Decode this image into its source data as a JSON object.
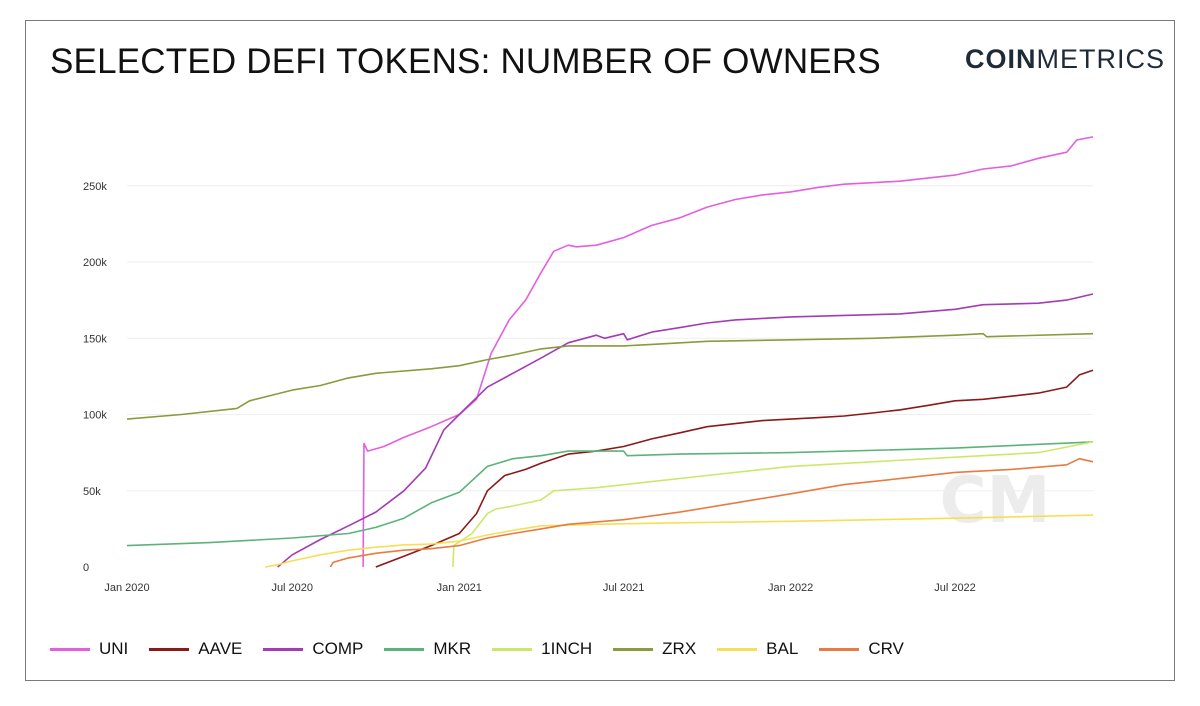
{
  "title": "SELECTED DEFI TOKENS: NUMBER OF OWNERS",
  "brand": {
    "bold": "COIN",
    "regular": "METRICS"
  },
  "watermark": "CM",
  "chart_data": {
    "type": "line",
    "title": "SELECTED DEFI TOKENS: NUMBER OF OWNERS",
    "xlabel": "",
    "ylabel": "",
    "x_axis": {
      "min": "2020-01-01",
      "max": "2022-11-30",
      "ticks": [
        {
          "date": "2020-01-01",
          "label": "Jan 2020"
        },
        {
          "date": "2020-07-01",
          "label": "Jul 2020"
        },
        {
          "date": "2021-01-01",
          "label": "Jan 2021"
        },
        {
          "date": "2021-07-01",
          "label": "Jul 2021"
        },
        {
          "date": "2022-01-01",
          "label": "Jan 2022"
        },
        {
          "date": "2022-07-01",
          "label": "Jul 2022"
        }
      ]
    },
    "y_axis": {
      "min": 0,
      "max": 280000,
      "ticks": [
        {
          "value": 0,
          "label": "0"
        },
        {
          "value": 50000,
          "label": "50k"
        },
        {
          "value": 100000,
          "label": "100k"
        },
        {
          "value": 150000,
          "label": "150k"
        },
        {
          "value": 200000,
          "label": "200k"
        },
        {
          "value": 250000,
          "label": "250k"
        }
      ]
    },
    "grid": true,
    "legend_position": "bottom",
    "series": [
      {
        "name": "UNI",
        "color": "#e45fe0",
        "points": [
          [
            "2020-09-17",
            0
          ],
          [
            "2020-09-18",
            81000
          ],
          [
            "2020-09-22",
            76000
          ],
          [
            "2020-10-10",
            79000
          ],
          [
            "2020-11-01",
            85000
          ],
          [
            "2020-12-01",
            92000
          ],
          [
            "2021-01-01",
            100000
          ],
          [
            "2021-01-20",
            110000
          ],
          [
            "2021-02-05",
            140000
          ],
          [
            "2021-02-25",
            162000
          ],
          [
            "2021-03-15",
            175000
          ],
          [
            "2021-04-01",
            193000
          ],
          [
            "2021-04-15",
            207000
          ],
          [
            "2021-05-01",
            211000
          ],
          [
            "2021-05-10",
            210000
          ],
          [
            "2021-06-01",
            211000
          ],
          [
            "2021-07-01",
            216000
          ],
          [
            "2021-08-01",
            224000
          ],
          [
            "2021-09-01",
            229000
          ],
          [
            "2021-10-01",
            236000
          ],
          [
            "2021-11-01",
            241000
          ],
          [
            "2021-12-01",
            244000
          ],
          [
            "2022-01-01",
            246000
          ],
          [
            "2022-02-01",
            249000
          ],
          [
            "2022-03-01",
            251000
          ],
          [
            "2022-04-01",
            252000
          ],
          [
            "2022-05-01",
            253000
          ],
          [
            "2022-06-01",
            255000
          ],
          [
            "2022-07-01",
            257000
          ],
          [
            "2022-08-01",
            261000
          ],
          [
            "2022-09-01",
            263000
          ],
          [
            "2022-10-01",
            268000
          ],
          [
            "2022-11-01",
            272000
          ],
          [
            "2022-11-12",
            280000
          ],
          [
            "2022-11-30",
            282000
          ]
        ]
      },
      {
        "name": "AAVE",
        "color": "#8a1a1a",
        "points": [
          [
            "2020-10-01",
            0
          ],
          [
            "2020-11-01",
            7000
          ],
          [
            "2020-12-01",
            14000
          ],
          [
            "2021-01-01",
            22000
          ],
          [
            "2021-01-20",
            35000
          ],
          [
            "2021-02-01",
            50000
          ],
          [
            "2021-02-20",
            60000
          ],
          [
            "2021-03-15",
            64000
          ],
          [
            "2021-04-01",
            68000
          ],
          [
            "2021-05-01",
            74000
          ],
          [
            "2021-06-01",
            76000
          ],
          [
            "2021-07-01",
            79000
          ],
          [
            "2021-08-01",
            84000
          ],
          [
            "2021-09-01",
            88000
          ],
          [
            "2021-10-01",
            92000
          ],
          [
            "2021-11-01",
            94000
          ],
          [
            "2021-12-01",
            96000
          ],
          [
            "2022-01-01",
            97000
          ],
          [
            "2022-02-01",
            98000
          ],
          [
            "2022-03-01",
            99000
          ],
          [
            "2022-04-01",
            101000
          ],
          [
            "2022-05-01",
            103000
          ],
          [
            "2022-06-01",
            106000
          ],
          [
            "2022-07-01",
            109000
          ],
          [
            "2022-08-01",
            110000
          ],
          [
            "2022-09-01",
            112000
          ],
          [
            "2022-10-01",
            114000
          ],
          [
            "2022-11-01",
            118000
          ],
          [
            "2022-11-15",
            126000
          ],
          [
            "2022-11-30",
            129000
          ]
        ]
      },
      {
        "name": "COMP",
        "color": "#a33bb5",
        "points": [
          [
            "2020-06-15",
            0
          ],
          [
            "2020-07-01",
            8000
          ],
          [
            "2020-08-01",
            18000
          ],
          [
            "2020-09-01",
            27000
          ],
          [
            "2020-10-01",
            36000
          ],
          [
            "2020-11-01",
            50000
          ],
          [
            "2020-11-25",
            65000
          ],
          [
            "2020-12-15",
            90000
          ],
          [
            "2021-01-01",
            100000
          ],
          [
            "2021-02-01",
            118000
          ],
          [
            "2021-03-01",
            127000
          ],
          [
            "2021-04-01",
            137000
          ],
          [
            "2021-05-01",
            147000
          ],
          [
            "2021-06-01",
            152000
          ],
          [
            "2021-06-10",
            150000
          ],
          [
            "2021-07-01",
            153000
          ],
          [
            "2021-07-05",
            149000
          ],
          [
            "2021-08-01",
            154000
          ],
          [
            "2021-09-01",
            157000
          ],
          [
            "2021-10-01",
            160000
          ],
          [
            "2021-11-01",
            162000
          ],
          [
            "2021-12-01",
            163000
          ],
          [
            "2022-01-01",
            164000
          ],
          [
            "2022-03-01",
            165000
          ],
          [
            "2022-05-01",
            166000
          ],
          [
            "2022-07-01",
            169000
          ],
          [
            "2022-08-01",
            172000
          ],
          [
            "2022-10-01",
            173000
          ],
          [
            "2022-11-01",
            175000
          ],
          [
            "2022-11-30",
            179000
          ]
        ]
      },
      {
        "name": "MKR",
        "color": "#5bb379",
        "points": [
          [
            "2020-01-01",
            14000
          ],
          [
            "2020-04-01",
            16000
          ],
          [
            "2020-07-01",
            19000
          ],
          [
            "2020-09-01",
            22000
          ],
          [
            "2020-10-01",
            26000
          ],
          [
            "2020-11-01",
            32000
          ],
          [
            "2020-12-01",
            42000
          ],
          [
            "2021-01-01",
            49000
          ],
          [
            "2021-02-01",
            66000
          ],
          [
            "2021-03-01",
            71000
          ],
          [
            "2021-04-01",
            73000
          ],
          [
            "2021-05-01",
            76000
          ],
          [
            "2021-07-01",
            76000
          ],
          [
            "2021-07-05",
            73000
          ],
          [
            "2021-09-01",
            74000
          ],
          [
            "2022-01-01",
            75000
          ],
          [
            "2022-07-01",
            78000
          ],
          [
            "2022-11-30",
            82000
          ]
        ]
      },
      {
        "name": "1INCH",
        "color": "#cce86b",
        "points": [
          [
            "2020-12-25",
            0
          ],
          [
            "2020-12-26",
            14000
          ],
          [
            "2021-01-15",
            22000
          ],
          [
            "2021-02-01",
            35000
          ],
          [
            "2021-02-10",
            38000
          ],
          [
            "2021-03-01",
            40000
          ],
          [
            "2021-04-01",
            44000
          ],
          [
            "2021-04-15",
            50000
          ],
          [
            "2021-06-01",
            52000
          ],
          [
            "2021-08-01",
            56000
          ],
          [
            "2021-10-01",
            60000
          ],
          [
            "2021-12-01",
            64000
          ],
          [
            "2022-01-01",
            66000
          ],
          [
            "2022-04-01",
            69000
          ],
          [
            "2022-07-01",
            72000
          ],
          [
            "2022-10-01",
            75000
          ],
          [
            "2022-11-30",
            82000
          ]
        ]
      },
      {
        "name": "ZRX",
        "color": "#8a9a3c",
        "points": [
          [
            "2020-01-01",
            97000
          ],
          [
            "2020-03-01",
            100000
          ],
          [
            "2020-05-01",
            104000
          ],
          [
            "2020-05-15",
            109000
          ],
          [
            "2020-07-01",
            116000
          ],
          [
            "2020-08-01",
            119000
          ],
          [
            "2020-09-01",
            124000
          ],
          [
            "2020-10-01",
            127000
          ],
          [
            "2020-12-01",
            130000
          ],
          [
            "2021-01-01",
            132000
          ],
          [
            "2021-02-01",
            136000
          ],
          [
            "2021-03-01",
            139000
          ],
          [
            "2021-04-01",
            143000
          ],
          [
            "2021-05-01",
            145000
          ],
          [
            "2021-06-01",
            145000
          ],
          [
            "2021-07-01",
            145000
          ],
          [
            "2021-08-01",
            146000
          ],
          [
            "2021-10-01",
            148000
          ],
          [
            "2022-01-01",
            149000
          ],
          [
            "2022-04-01",
            150000
          ],
          [
            "2022-07-01",
            152000
          ],
          [
            "2022-08-01",
            153000
          ],
          [
            "2022-08-05",
            151000
          ],
          [
            "2022-11-30",
            153000
          ]
        ]
      },
      {
        "name": "BAL",
        "color": "#f5df55",
        "points": [
          [
            "2020-06-01",
            0
          ],
          [
            "2020-06-15",
            1500
          ],
          [
            "2020-07-01",
            4000
          ],
          [
            "2020-08-01",
            8000
          ],
          [
            "2020-09-01",
            11000
          ],
          [
            "2020-10-01",
            13000
          ],
          [
            "2020-11-01",
            14500
          ],
          [
            "2020-12-01",
            15000
          ],
          [
            "2021-01-01",
            17000
          ],
          [
            "2021-02-01",
            21000
          ],
          [
            "2021-03-01",
            24000
          ],
          [
            "2021-04-01",
            27000
          ],
          [
            "2021-06-01",
            28000
          ],
          [
            "2021-09-01",
            29000
          ],
          [
            "2022-01-01",
            30000
          ],
          [
            "2022-07-01",
            32000
          ],
          [
            "2022-11-30",
            34000
          ]
        ]
      },
      {
        "name": "CRV",
        "color": "#e87b41",
        "points": [
          [
            "2020-08-12",
            0
          ],
          [
            "2020-08-15",
            3000
          ],
          [
            "2020-09-01",
            6000
          ],
          [
            "2020-10-01",
            9000
          ],
          [
            "2020-11-01",
            11000
          ],
          [
            "2020-12-01",
            12000
          ],
          [
            "2021-01-01",
            14000
          ],
          [
            "2021-02-01",
            19000
          ],
          [
            "2021-03-01",
            22000
          ],
          [
            "2021-04-01",
            25000
          ],
          [
            "2021-05-01",
            28000
          ],
          [
            "2021-07-01",
            31000
          ],
          [
            "2021-09-01",
            36000
          ],
          [
            "2021-11-01",
            42000
          ],
          [
            "2022-01-01",
            48000
          ],
          [
            "2022-03-01",
            54000
          ],
          [
            "2022-05-01",
            58000
          ],
          [
            "2022-07-01",
            62000
          ],
          [
            "2022-09-01",
            64000
          ],
          [
            "2022-11-01",
            67000
          ],
          [
            "2022-11-15",
            71000
          ],
          [
            "2022-11-30",
            69000
          ]
        ]
      }
    ]
  }
}
